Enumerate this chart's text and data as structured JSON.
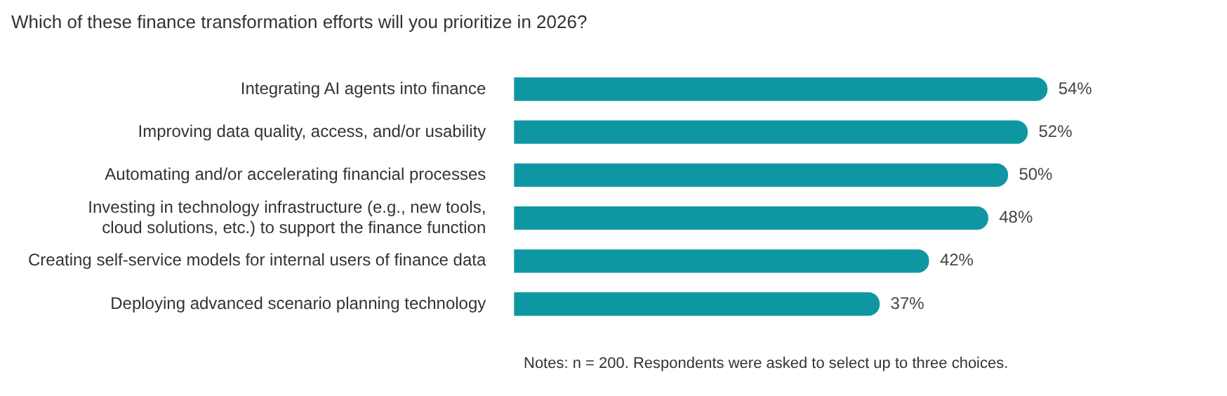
{
  "chart_data": {
    "type": "bar",
    "orientation": "horizontal",
    "title": "Which of these finance transformation efforts will you prioritize in 2026?",
    "categories": [
      "Integrating AI agents into finance",
      "Improving data quality, access, and/or usability",
      "Automating and/or accelerating financial processes",
      "Investing in technology infrastructure (e.g., new tools,\ncloud solutions, etc.) to support the finance function",
      "Creating self-service models for internal users of finance data",
      "Deploying advanced scenario planning technology"
    ],
    "values": [
      54,
      52,
      50,
      48,
      42,
      37
    ],
    "value_labels": [
      "54%",
      "52%",
      "50%",
      "48%",
      "42%",
      "37%"
    ],
    "color": "#0e97a3",
    "annotations": [
      "Notes: n = 200. Respondents were asked to select up to three choices."
    ],
    "legend": false
  }
}
